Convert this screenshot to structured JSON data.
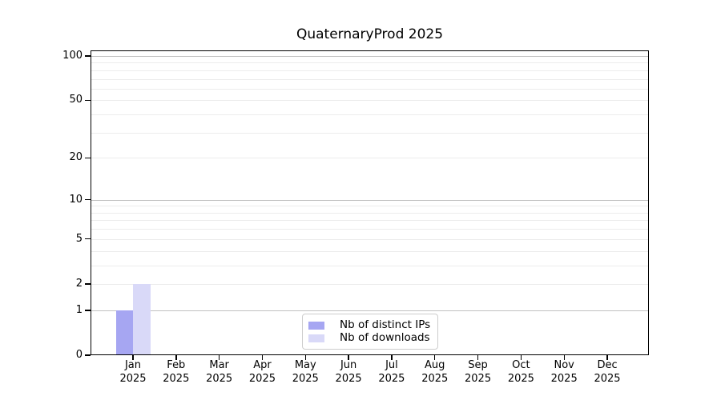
{
  "chart_data": {
    "type": "bar",
    "title": "QuaternaryProd 2025",
    "categories": [
      "Jan 2025",
      "Feb 2025",
      "Mar 2025",
      "Apr 2025",
      "May 2025",
      "Jun 2025",
      "Jul 2025",
      "Aug 2025",
      "Sep 2025",
      "Oct 2025",
      "Nov 2025",
      "Dec 2025"
    ],
    "x_tick_months": [
      "Jan",
      "Feb",
      "Mar",
      "Apr",
      "May",
      "Jun",
      "Jul",
      "Aug",
      "Sep",
      "Oct",
      "Nov",
      "Dec"
    ],
    "x_tick_year": "2025",
    "series": [
      {
        "name": "Nb of distinct IPs",
        "color": "#a6a6f2",
        "values": [
          1,
          0,
          0,
          0,
          0,
          0,
          0,
          0,
          0,
          0,
          0,
          0
        ]
      },
      {
        "name": "Nb of downloads",
        "color": "#d9d9f8",
        "values": [
          2,
          0,
          0,
          0,
          0,
          0,
          0,
          0,
          0,
          0,
          0,
          0
        ]
      }
    ],
    "yaxis": {
      "tick_labels": [
        "0",
        "1",
        "2",
        "5",
        "10",
        "20",
        "50",
        "100"
      ],
      "tick_values": [
        0,
        1,
        2,
        5,
        10,
        20,
        50,
        100
      ],
      "scale": "log10(1+y)",
      "ylim": [
        0,
        100
      ]
    },
    "grid": {
      "major_values": [
        1,
        10,
        100
      ],
      "minor_values": [
        2,
        3,
        4,
        5,
        6,
        7,
        8,
        9,
        20,
        30,
        40,
        50,
        60,
        70,
        80,
        90
      ]
    },
    "legend": {
      "position": "lower center"
    }
  },
  "colors": {
    "background": "#ffffff",
    "axis": "#000000",
    "text": "#000000",
    "major_grid": "#c0c0c0",
    "minor_grid": "#ebebeb",
    "legend_border": "#cccccc",
    "bar_distinct_ips": "#a6a6f2",
    "bar_downloads": "#d9d9f8"
  }
}
